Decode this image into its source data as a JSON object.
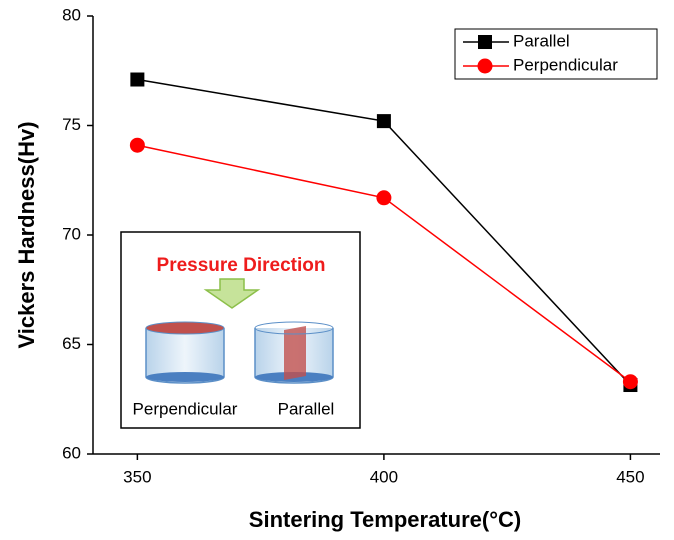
{
  "chart_data": {
    "type": "line",
    "x_label": "Sintering Temperature(°C)",
    "y_label": "Vickers Hardness(Hv)",
    "x": [
      350,
      400,
      450
    ],
    "series": [
      {
        "name": "Parallel",
        "color": "#000000",
        "marker": "square",
        "values": [
          77.1,
          75.2,
          63.15
        ]
      },
      {
        "name": "Perpendicular",
        "color": "#ff0000",
        "marker": "circle",
        "values": [
          74.1,
          71.7,
          63.3
        ]
      }
    ],
    "xlim": [
      341,
      456
    ],
    "xticks": [
      350,
      400,
      450
    ],
    "ylim": [
      60,
      80
    ],
    "yticks": [
      60,
      65,
      70,
      75,
      80
    ],
    "grid": false,
    "legend": "top-right",
    "inset": {
      "title": "Pressure Direction",
      "labels": [
        "Perpendicular",
        "Parallel"
      ]
    }
  }
}
